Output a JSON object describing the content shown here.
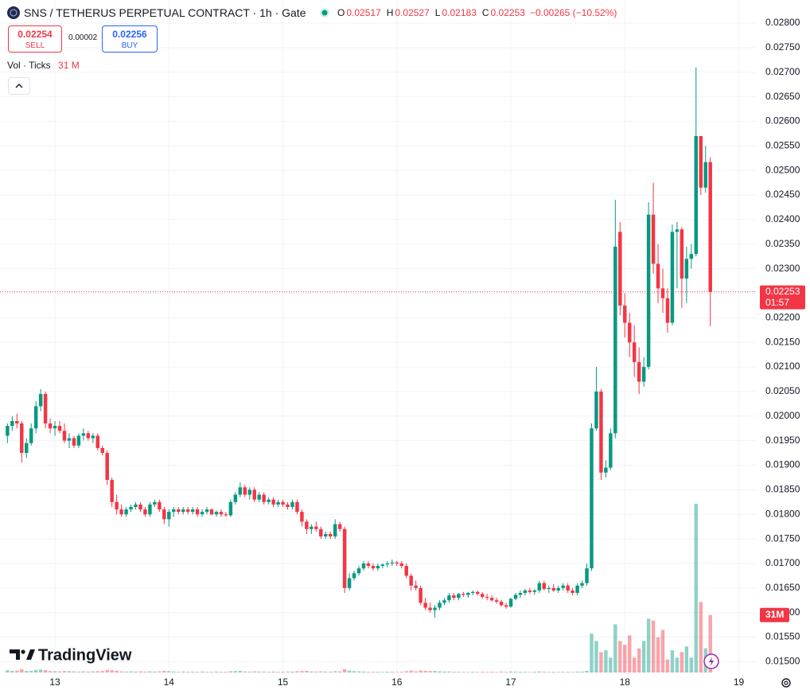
{
  "chart_data": {
    "type": "candlestick",
    "title": "SNS / TETHERUS PERPETUAL CONTRACT · 1h · Gate",
    "ohlc_legend": [
      {
        "label": "O",
        "value": 0.02517
      },
      {
        "label": "H",
        "value": 0.02527
      },
      {
        "label": "L",
        "value": 0.02183
      },
      {
        "label": "C",
        "value": 0.02253
      }
    ],
    "change": "−0.00265 (−10.52%)",
    "sell": {
      "price": 0.02254,
      "label": "SELL"
    },
    "spread": 2e-05,
    "buy": {
      "price": 0.02256,
      "label": "BUY"
    },
    "volume_legend": {
      "title": "Vol · Ticks",
      "value": "31 M"
    },
    "up_color": "#089981",
    "down_color": "#f23645",
    "candles": [
      [
        0.0196,
        0.01985,
        0.01945,
        0.0198
      ],
      [
        0.0198,
        0.02,
        0.0197,
        0.0199
      ],
      [
        0.0199,
        0.02005,
        0.01975,
        0.01985
      ],
      [
        0.01985,
        0.0199,
        0.01905,
        0.01925
      ],
      [
        0.01925,
        0.01955,
        0.01915,
        0.01945
      ],
      [
        0.01945,
        0.01985,
        0.0194,
        0.01975
      ],
      [
        0.01975,
        0.0203,
        0.01965,
        0.0202
      ],
      [
        0.0202,
        0.02055,
        0.0201,
        0.02045
      ],
      [
        0.02045,
        0.0205,
        0.01975,
        0.01985
      ],
      [
        0.01985,
        0.01995,
        0.01965,
        0.01975
      ],
      [
        0.01975,
        0.0199,
        0.0196,
        0.0198
      ],
      [
        0.0198,
        0.0199,
        0.01965,
        0.0197
      ],
      [
        0.0197,
        0.01985,
        0.01945,
        0.0195
      ],
      [
        0.0195,
        0.01965,
        0.01935,
        0.01955
      ],
      [
        0.01955,
        0.0196,
        0.01935,
        0.0194
      ],
      [
        0.0194,
        0.01965,
        0.01935,
        0.0196
      ],
      [
        0.0196,
        0.01975,
        0.0195,
        0.01965
      ],
      [
        0.01965,
        0.0197,
        0.0195,
        0.01955
      ],
      [
        0.01955,
        0.01965,
        0.01945,
        0.0196
      ],
      [
        0.0196,
        0.01965,
        0.0193,
        0.01935
      ],
      [
        0.01935,
        0.0194,
        0.0192,
        0.01925
      ],
      [
        0.01925,
        0.0193,
        0.0186,
        0.0187
      ],
      [
        0.0187,
        0.01875,
        0.01815,
        0.01825
      ],
      [
        0.01825,
        0.0184,
        0.018,
        0.0181
      ],
      [
        0.0181,
        0.0182,
        0.01795,
        0.018
      ],
      [
        0.018,
        0.01815,
        0.01795,
        0.0181
      ],
      [
        0.0181,
        0.0182,
        0.01805,
        0.01815
      ],
      [
        0.01815,
        0.01825,
        0.0181,
        0.0182
      ],
      [
        0.0182,
        0.01825,
        0.01805,
        0.0181
      ],
      [
        0.0181,
        0.01815,
        0.01795,
        0.018
      ],
      [
        0.018,
        0.01825,
        0.01795,
        0.0182
      ],
      [
        0.0182,
        0.0183,
        0.01815,
        0.01825
      ],
      [
        0.01825,
        0.0183,
        0.01805,
        0.0181
      ],
      [
        0.0181,
        0.01815,
        0.0178,
        0.0179
      ],
      [
        0.0179,
        0.0181,
        0.01775,
        0.01805
      ],
      [
        0.01805,
        0.01815,
        0.01795,
        0.0181
      ],
      [
        0.0181,
        0.01815,
        0.018,
        0.01805
      ],
      [
        0.01805,
        0.01815,
        0.018,
        0.0181
      ],
      [
        0.0181,
        0.01815,
        0.018,
        0.01805
      ],
      [
        0.01805,
        0.01815,
        0.018,
        0.0181
      ],
      [
        0.0181,
        0.01815,
        0.01795,
        0.018
      ],
      [
        0.018,
        0.0181,
        0.01795,
        0.01805
      ],
      [
        0.01805,
        0.01815,
        0.018,
        0.0181
      ],
      [
        0.0181,
        0.01812,
        0.01798,
        0.018
      ],
      [
        0.018,
        0.01808,
        0.01795,
        0.01805
      ],
      [
        0.01805,
        0.0181,
        0.01795,
        0.018
      ],
      [
        0.018,
        0.01805,
        0.01795,
        0.01798
      ],
      [
        0.01798,
        0.0183,
        0.01795,
        0.01825
      ],
      [
        0.01825,
        0.01845,
        0.0182,
        0.0184
      ],
      [
        0.0184,
        0.01865,
        0.01835,
        0.01855
      ],
      [
        0.01855,
        0.0186,
        0.01835,
        0.0184
      ],
      [
        0.0184,
        0.01855,
        0.0183,
        0.0185
      ],
      [
        0.0185,
        0.01855,
        0.01825,
        0.0183
      ],
      [
        0.0183,
        0.01845,
        0.01825,
        0.0184
      ],
      [
        0.0184,
        0.01845,
        0.0182,
        0.01825
      ],
      [
        0.01825,
        0.01835,
        0.0182,
        0.0183
      ],
      [
        0.0183,
        0.01835,
        0.01815,
        0.0182
      ],
      [
        0.0182,
        0.0183,
        0.01815,
        0.01825
      ],
      [
        0.01825,
        0.0183,
        0.01815,
        0.0182
      ],
      [
        0.0182,
        0.01825,
        0.0181,
        0.01815
      ],
      [
        0.01815,
        0.0183,
        0.0181,
        0.01825
      ],
      [
        0.01825,
        0.0183,
        0.018,
        0.01805
      ],
      [
        0.01805,
        0.0181,
        0.01775,
        0.01785
      ],
      [
        0.01785,
        0.0179,
        0.0176,
        0.0177
      ],
      [
        0.0177,
        0.0178,
        0.0176,
        0.01775
      ],
      [
        0.01775,
        0.01785,
        0.01765,
        0.0177
      ],
      [
        0.0177,
        0.01775,
        0.0175,
        0.01755
      ],
      [
        0.01755,
        0.01765,
        0.0175,
        0.0176
      ],
      [
        0.0176,
        0.01765,
        0.0175,
        0.01755
      ],
      [
        0.01755,
        0.0179,
        0.0175,
        0.0178
      ],
      [
        0.0178,
        0.01785,
        0.01765,
        0.0177
      ],
      [
        0.0177,
        0.01775,
        0.0164,
        0.0165
      ],
      [
        0.0165,
        0.0168,
        0.01645,
        0.0167
      ],
      [
        0.0167,
        0.01685,
        0.01665,
        0.0168
      ],
      [
        0.0168,
        0.01695,
        0.01675,
        0.0169
      ],
      [
        0.0169,
        0.01705,
        0.01685,
        0.017
      ],
      [
        0.017,
        0.01705,
        0.0169,
        0.01695
      ],
      [
        0.01695,
        0.017,
        0.01685,
        0.0169
      ],
      [
        0.0169,
        0.017,
        0.01685,
        0.01695
      ],
      [
        0.01695,
        0.017,
        0.0169,
        0.01698
      ],
      [
        0.01698,
        0.01705,
        0.01692,
        0.017
      ],
      [
        0.017,
        0.01708,
        0.01695,
        0.01702
      ],
      [
        0.01702,
        0.01705,
        0.01695,
        0.017
      ],
      [
        0.017,
        0.01705,
        0.0169,
        0.01695
      ],
      [
        0.01695,
        0.017,
        0.0167,
        0.01675
      ],
      [
        0.01675,
        0.0168,
        0.01645,
        0.01655
      ],
      [
        0.01655,
        0.01665,
        0.01645,
        0.0165
      ],
      [
        0.0165,
        0.01655,
        0.01615,
        0.0162
      ],
      [
        0.0162,
        0.0163,
        0.01605,
        0.0161
      ],
      [
        0.0161,
        0.0162,
        0.016,
        0.01605
      ],
      [
        0.01605,
        0.01615,
        0.0159,
        0.0161
      ],
      [
        0.0161,
        0.01625,
        0.01605,
        0.0162
      ],
      [
        0.0162,
        0.0163,
        0.01615,
        0.01625
      ],
      [
        0.01625,
        0.0164,
        0.0162,
        0.01635
      ],
      [
        0.01635,
        0.0164,
        0.01625,
        0.0163
      ],
      [
        0.0163,
        0.0164,
        0.01625,
        0.01638
      ],
      [
        0.01638,
        0.01642,
        0.01632,
        0.01636
      ],
      [
        0.01636,
        0.01642,
        0.0163,
        0.0164
      ],
      [
        0.0164,
        0.01645,
        0.01635,
        0.01642
      ],
      [
        0.01642,
        0.01645,
        0.01635,
        0.01638
      ],
      [
        0.01638,
        0.01642,
        0.01628,
        0.01632
      ],
      [
        0.01632,
        0.01638,
        0.01625,
        0.0163
      ],
      [
        0.0163,
        0.01635,
        0.01622,
        0.01625
      ],
      [
        0.01625,
        0.0163,
        0.01618,
        0.01622
      ],
      [
        0.01622,
        0.01626,
        0.01612,
        0.01615
      ],
      [
        0.01615,
        0.0162,
        0.01608,
        0.01612
      ],
      [
        0.01612,
        0.0163,
        0.0161,
        0.01628
      ],
      [
        0.01628,
        0.0164,
        0.01625,
        0.01636
      ],
      [
        0.01636,
        0.01645,
        0.0163,
        0.0164
      ],
      [
        0.0164,
        0.01648,
        0.01635,
        0.01645
      ],
      [
        0.01645,
        0.0165,
        0.01638,
        0.01642
      ],
      [
        0.01642,
        0.01648,
        0.01636,
        0.01645
      ],
      [
        0.01645,
        0.01665,
        0.0164,
        0.0166
      ],
      [
        0.0166,
        0.01665,
        0.01645,
        0.01648
      ],
      [
        0.01648,
        0.01655,
        0.0164,
        0.0165
      ],
      [
        0.0165,
        0.01658,
        0.01642,
        0.01645
      ],
      [
        0.01645,
        0.01655,
        0.0164,
        0.0165
      ],
      [
        0.0165,
        0.0166,
        0.01645,
        0.01655
      ],
      [
        0.01655,
        0.0166,
        0.0164,
        0.01645
      ],
      [
        0.01645,
        0.0165,
        0.01635,
        0.0164
      ],
      [
        0.0164,
        0.0166,
        0.01635,
        0.01655
      ],
      [
        0.01655,
        0.01665,
        0.0165,
        0.0166
      ],
      [
        0.0166,
        0.017,
        0.01655,
        0.0169
      ],
      [
        0.0169,
        0.01985,
        0.01685,
        0.01975
      ],
      [
        0.01975,
        0.021,
        0.0197,
        0.0205
      ],
      [
        0.0205,
        0.02055,
        0.0187,
        0.01885
      ],
      [
        0.01885,
        0.0191,
        0.01875,
        0.01895
      ],
      [
        0.01895,
        0.01975,
        0.0189,
        0.01965
      ],
      [
        0.01965,
        0.0244,
        0.01955,
        0.02345
      ],
      [
        0.02375,
        0.02395,
        0.02205,
        0.02225
      ],
      [
        0.02225,
        0.0225,
        0.0216,
        0.0219
      ],
      [
        0.0219,
        0.0221,
        0.0212,
        0.0215
      ],
      [
        0.0215,
        0.02185,
        0.0208,
        0.0211
      ],
      [
        0.0211,
        0.0214,
        0.02045,
        0.0207
      ],
      [
        0.0207,
        0.0212,
        0.0206,
        0.021
      ],
      [
        0.021,
        0.02435,
        0.02095,
        0.0241
      ],
      [
        0.0241,
        0.02475,
        0.0229,
        0.0231
      ],
      [
        0.0231,
        0.0235,
        0.0223,
        0.0226
      ],
      [
        0.0226,
        0.023,
        0.0221,
        0.0224
      ],
      [
        0.0224,
        0.0226,
        0.0217,
        0.0219
      ],
      [
        0.0219,
        0.0239,
        0.02185,
        0.02375
      ],
      [
        0.02375,
        0.02395,
        0.0226,
        0.0238
      ],
      [
        0.0238,
        0.02385,
        0.0222,
        0.0228
      ],
      [
        0.0228,
        0.02345,
        0.0223,
        0.0232
      ],
      [
        0.0232,
        0.0235,
        0.023,
        0.0233
      ],
      [
        0.0233,
        0.0271,
        0.02325,
        0.0257
      ],
      [
        0.0257,
        0.0257,
        0.0245,
        0.02465
      ],
      [
        0.02465,
        0.0255,
        0.02455,
        0.02517
      ],
      [
        0.02517,
        0.02527,
        0.02183,
        0.02253
      ]
    ],
    "volume": [
      1.2,
      0.9,
      1.0,
      1.8,
      0.8,
      0.9,
      1.4,
      1.6,
      1.3,
      0.8,
      0.7,
      0.6,
      0.8,
      0.7,
      0.6,
      0.5,
      0.6,
      0.5,
      0.6,
      0.7,
      0.8,
      1.4,
      1.2,
      0.9,
      0.6,
      0.5,
      0.6,
      0.5,
      0.6,
      0.5,
      0.6,
      0.5,
      0.6,
      0.9,
      0.7,
      0.5,
      0.4,
      0.5,
      0.4,
      0.5,
      0.4,
      0.5,
      0.4,
      0.4,
      0.5,
      0.4,
      0.4,
      0.7,
      0.8,
      0.9,
      0.6,
      0.5,
      0.6,
      0.5,
      0.5,
      0.4,
      0.5,
      0.4,
      0.4,
      0.5,
      0.5,
      0.7,
      0.8,
      0.9,
      0.6,
      0.5,
      0.6,
      0.5,
      0.5,
      0.7,
      0.6,
      1.8,
      1.0,
      0.7,
      0.6,
      0.5,
      0.4,
      0.4,
      0.4,
      0.3,
      0.4,
      0.4,
      0.3,
      0.4,
      0.7,
      1.0,
      0.6,
      1.1,
      0.9,
      0.8,
      0.8,
      0.6,
      0.5,
      0.6,
      0.4,
      0.4,
      0.3,
      0.3,
      0.4,
      0.3,
      0.4,
      0.3,
      0.4,
      0.3,
      0.5,
      0.4,
      0.5,
      0.5,
      0.4,
      0.4,
      0.3,
      0.4,
      0.6,
      0.4,
      0.3,
      0.4,
      0.3,
      0.4,
      0.4,
      0.3,
      0.5,
      0.5,
      0.9,
      21,
      17,
      11,
      12,
      8,
      26,
      17,
      15,
      20,
      8,
      13,
      17,
      29,
      28,
      19,
      23,
      7,
      12,
      8,
      11,
      14,
      8,
      91,
      38,
      13,
      31
    ],
    "volume_tag": {
      "value": 31,
      "label": "31M"
    },
    "last_price": 0.02253,
    "countdown": "01:57",
    "xlim": [
      -1.57,
      157.6
    ],
    "xticks": [
      {
        "value": 10,
        "label": "13"
      },
      {
        "value": 34,
        "label": "14"
      },
      {
        "value": 58,
        "label": "15"
      },
      {
        "value": 82,
        "label": "16"
      },
      {
        "value": 106,
        "label": "17"
      },
      {
        "value": 130,
        "label": "18"
      },
      {
        "value": 154,
        "label": "19"
      }
    ],
    "ylim": [
      0.01478,
      0.02847
    ],
    "yticks": [
      {
        "value": 0.015,
        "label": "0.01500"
      },
      {
        "value": 0.0155,
        "label": "0.01550"
      },
      {
        "value": 0.016,
        "label": "0.01600"
      },
      {
        "value": 0.0165,
        "label": "0.01650"
      },
      {
        "value": 0.017,
        "label": "0.01700"
      },
      {
        "value": 0.0175,
        "label": "0.01750"
      },
      {
        "value": 0.018,
        "label": "0.01800"
      },
      {
        "value": 0.0185,
        "label": "0.01850"
      },
      {
        "value": 0.019,
        "label": "0.01900"
      },
      {
        "value": 0.0195,
        "label": "0.01950"
      },
      {
        "value": 0.02,
        "label": "0.02000"
      },
      {
        "value": 0.0205,
        "label": "0.02050"
      },
      {
        "value": 0.021,
        "label": "0.02100"
      },
      {
        "value": 0.0215,
        "label": "0.02150"
      },
      {
        "value": 0.022,
        "label": "0.02200"
      },
      {
        "value": 0.0225,
        "label": "0.02250"
      },
      {
        "value": 0.023,
        "label": "0.02300"
      },
      {
        "value": 0.0235,
        "label": "0.02350"
      },
      {
        "value": 0.024,
        "label": "0.02400"
      },
      {
        "value": 0.0245,
        "label": "0.02450"
      },
      {
        "value": 0.025,
        "label": "0.02500"
      },
      {
        "value": 0.0255,
        "label": "0.02550"
      },
      {
        "value": 0.026,
        "label": "0.02600"
      },
      {
        "value": 0.0265,
        "label": "0.02650"
      },
      {
        "value": 0.027,
        "label": "0.02700"
      },
      {
        "value": 0.0275,
        "label": "0.02750"
      },
      {
        "value": 0.028,
        "label": "0.02800"
      }
    ],
    "grid": true,
    "watermark": "TradingView"
  }
}
